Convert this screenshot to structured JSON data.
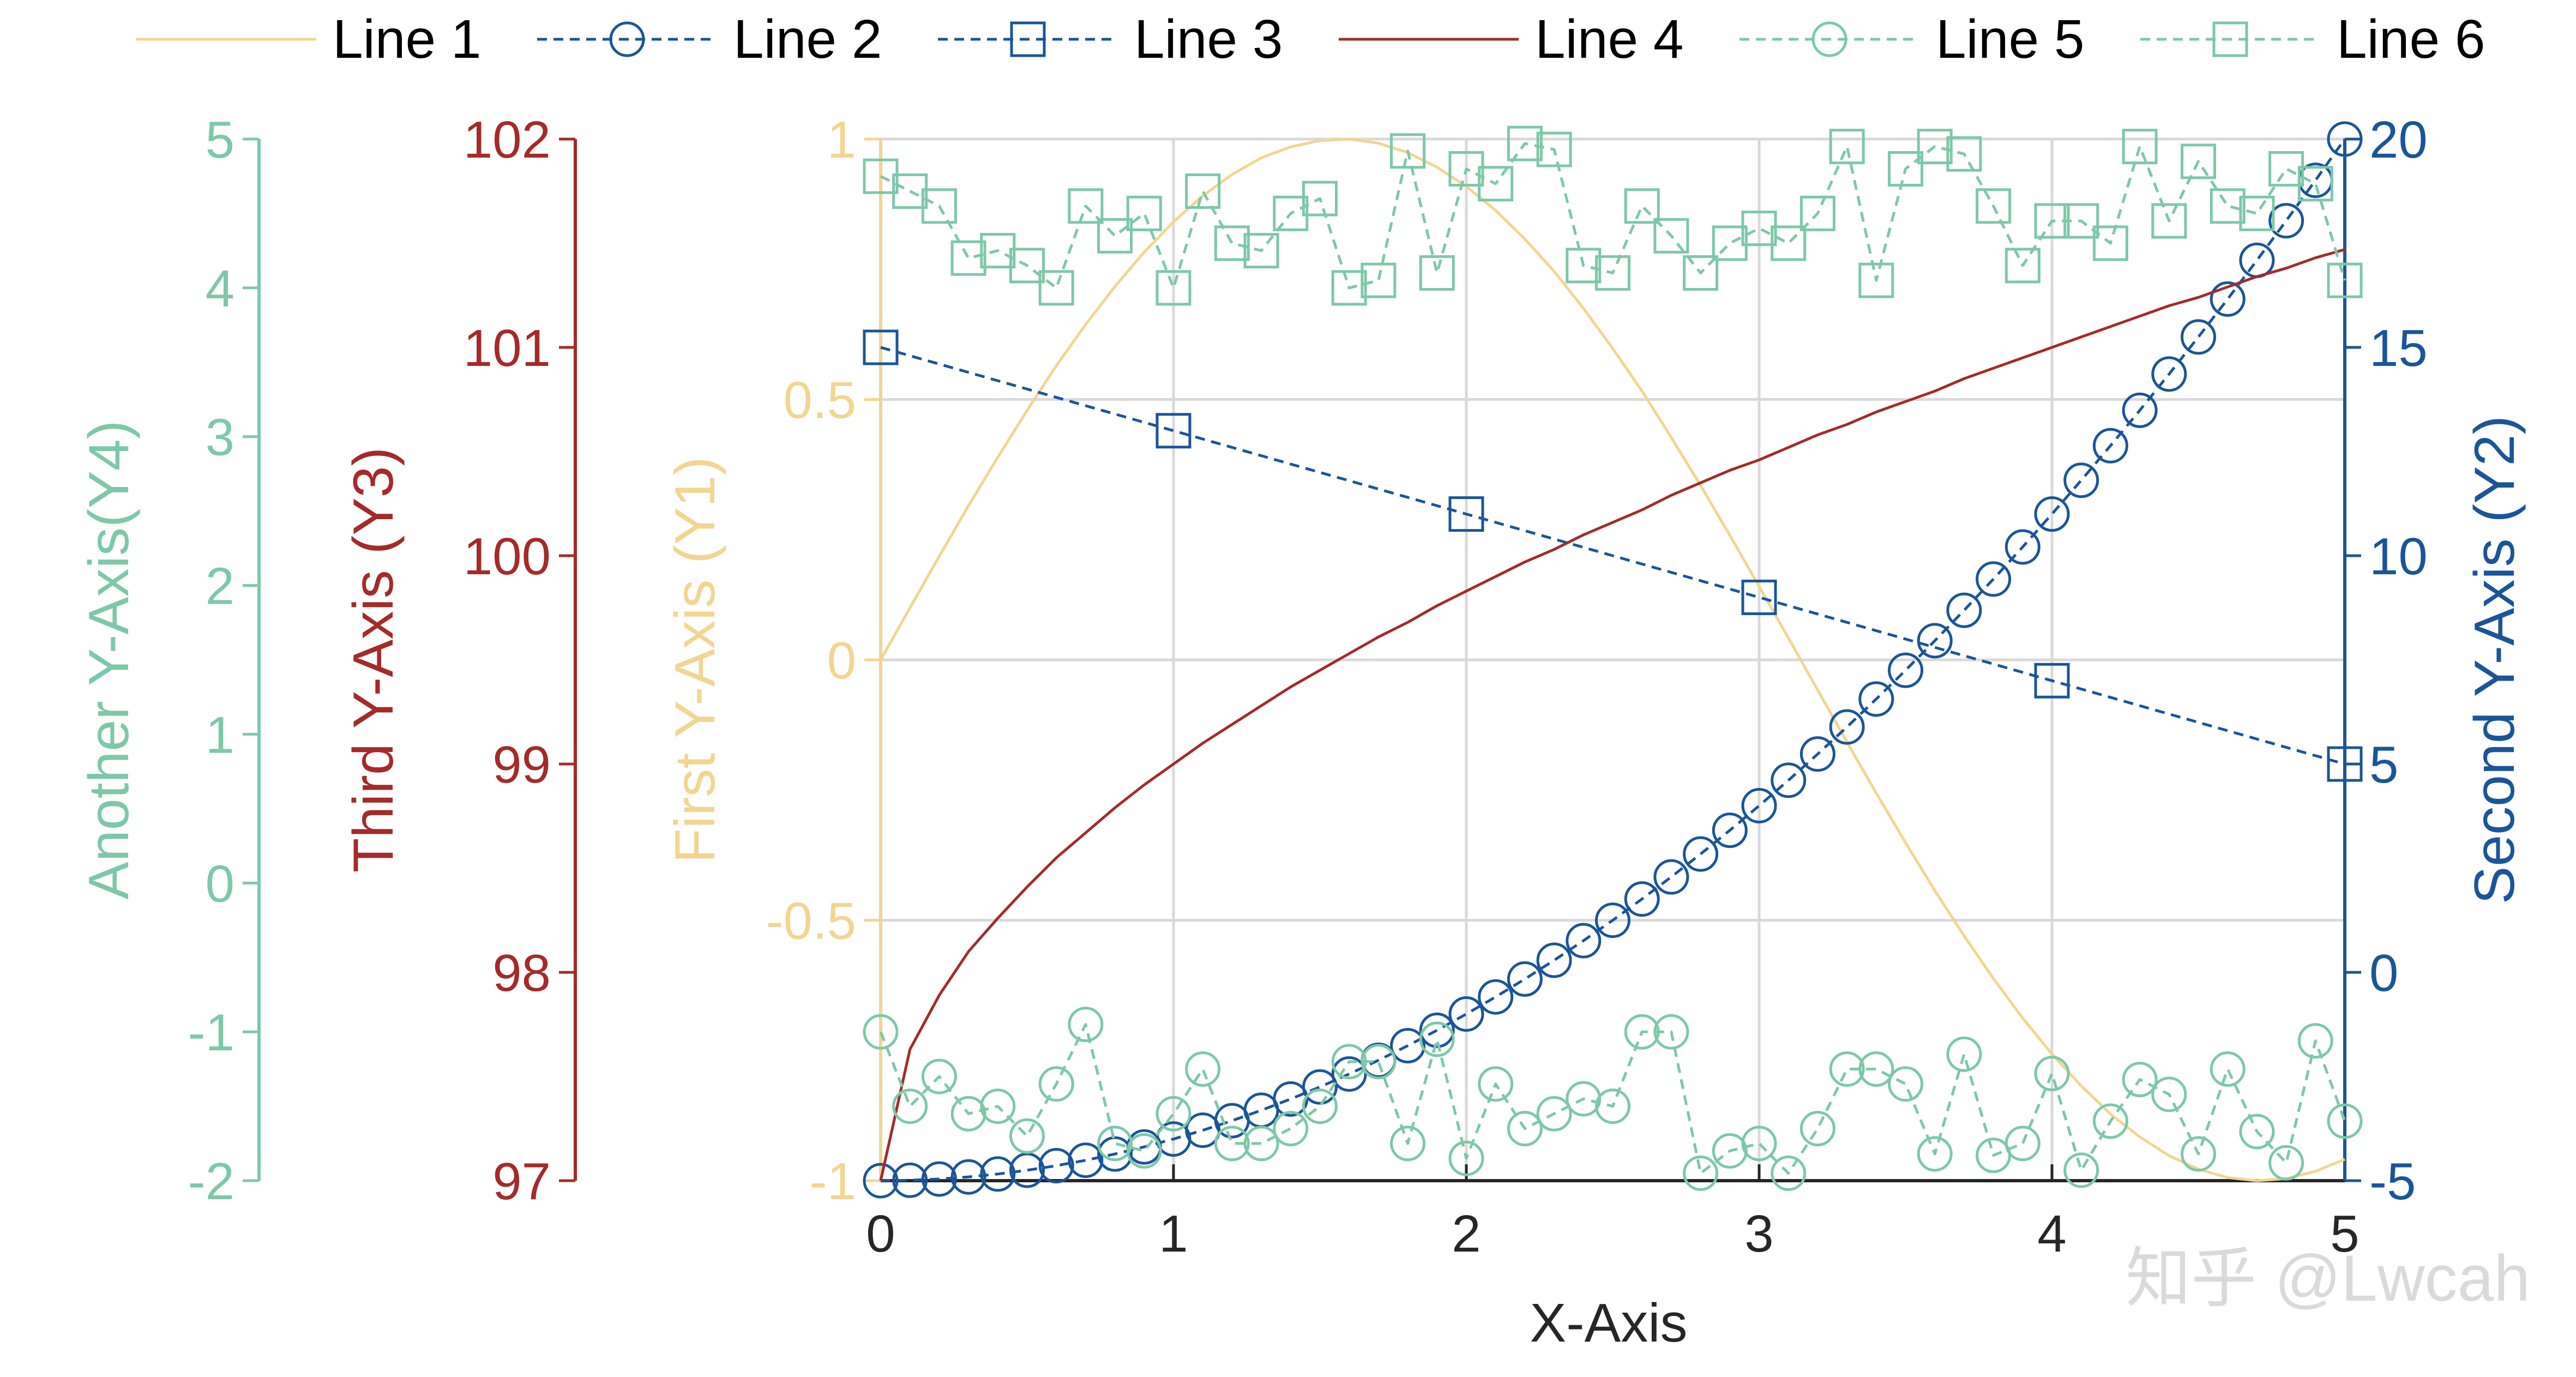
{
  "chart_data": {
    "type": "line",
    "xlabel": "X-Axis",
    "xlim": [
      0,
      5
    ],
    "x_ticks": [
      "0",
      "1",
      "2",
      "3",
      "4",
      "5"
    ],
    "grid": true,
    "legend_position": "top",
    "watermark": "知乎 @Lwcah",
    "axes": {
      "y1": {
        "label": "First Y-Axis (Y1)",
        "lim": [
          -1,
          1
        ],
        "ticks": [
          "1",
          "0.5",
          "0",
          "-0.5",
          "-1"
        ],
        "color": "#F2D590"
      },
      "y2": {
        "label": "Second Y-Axis (Y2)",
        "lim": [
          -5,
          20
        ],
        "ticks": [
          "20",
          "15",
          "10",
          "5",
          "0",
          "-5"
        ],
        "color": "#1A5599"
      },
      "y3": {
        "label": "Third Y-Axis (Y3)",
        "lim": [
          97,
          102
        ],
        "ticks": [
          "102",
          "101",
          "100",
          "99",
          "98",
          "97"
        ],
        "color": "#A52A2A"
      },
      "y4": {
        "label": "Another Y-Axis(Y4)",
        "lim": [
          -2,
          5
        ],
        "ticks": [
          "5",
          "4",
          "3",
          "2",
          "1",
          "0",
          "-1",
          "-2"
        ],
        "color": "#7DC8A8"
      }
    },
    "series": [
      {
        "name": "Line 1",
        "axis": "y1",
        "color": "#F2D590",
        "style": "solid",
        "marker": "none",
        "x": [
          0,
          0.1,
          0.2,
          0.3,
          0.4,
          0.5,
          0.6,
          0.7,
          0.8,
          0.9,
          1,
          1.1,
          1.2,
          1.3,
          1.4,
          1.5,
          1.6,
          1.7,
          1.8,
          1.9,
          2,
          2.1,
          2.2,
          2.3,
          2.4,
          2.5,
          2.6,
          2.7,
          2.8,
          2.9,
          3,
          3.1,
          3.2,
          3.3,
          3.4,
          3.5,
          3.6,
          3.7,
          3.8,
          3.9,
          4,
          4.1,
          4.2,
          4.3,
          4.4,
          4.5,
          4.6,
          4.7,
          4.8,
          4.9,
          5
        ],
        "y": [
          0,
          0.1,
          0.199,
          0.296,
          0.389,
          0.479,
          0.565,
          0.644,
          0.717,
          0.783,
          0.841,
          0.891,
          0.932,
          0.964,
          0.985,
          0.997,
          1.0,
          0.992,
          0.974,
          0.946,
          0.909,
          0.863,
          0.808,
          0.746,
          0.675,
          0.598,
          0.516,
          0.427,
          0.335,
          0.239,
          0.141,
          0.042,
          -0.058,
          -0.158,
          -0.256,
          -0.351,
          -0.443,
          -0.53,
          -0.612,
          -0.688,
          -0.757,
          -0.818,
          -0.872,
          -0.916,
          -0.952,
          -0.978,
          -0.994,
          -1.0,
          -0.996,
          -0.982,
          -0.959
        ]
      },
      {
        "name": "Line 2",
        "axis": "y2",
        "color": "#1A5599",
        "style": "dashed",
        "marker": "circle",
        "x": [
          0,
          0.1,
          0.2,
          0.3,
          0.4,
          0.5,
          0.6,
          0.7,
          0.8,
          0.9,
          1,
          1.1,
          1.2,
          1.3,
          1.4,
          1.5,
          1.6,
          1.7,
          1.8,
          1.9,
          2,
          2.1,
          2.2,
          2.3,
          2.4,
          2.5,
          2.6,
          2.7,
          2.8,
          2.9,
          3,
          3.1,
          3.2,
          3.3,
          3.4,
          3.5,
          3.6,
          3.7,
          3.8,
          3.9,
          4,
          4.1,
          4.2,
          4.3,
          4.4,
          4.5,
          4.6,
          4.7,
          4.8,
          4.9,
          5
        ],
        "y": [
          -5,
          -4.99,
          -4.96,
          -4.91,
          -4.84,
          -4.75,
          -4.64,
          -4.51,
          -4.36,
          -4.19,
          -4,
          -3.79,
          -3.56,
          -3.31,
          -3.04,
          -2.75,
          -2.44,
          -2.11,
          -1.76,
          -1.39,
          -1,
          -0.59,
          -0.16,
          0.29,
          0.76,
          1.25,
          1.76,
          2.29,
          2.84,
          3.41,
          4,
          4.61,
          5.24,
          5.89,
          6.56,
          7.25,
          7.96,
          8.69,
          9.44,
          10.21,
          11,
          11.81,
          12.64,
          13.49,
          14.36,
          15.25,
          16.16,
          17.09,
          18.04,
          19.01,
          20
        ]
      },
      {
        "name": "Line 3",
        "axis": "y2",
        "color": "#1A5599",
        "style": "dashed",
        "marker": "square",
        "x": [
          0,
          1,
          2,
          3,
          4,
          5
        ],
        "y": [
          15,
          13,
          11,
          9,
          7,
          5
        ]
      },
      {
        "name": "Line 4",
        "axis": "y3",
        "color": "#A52A2A",
        "style": "solid",
        "marker": "none",
        "x": [
          0,
          0.1,
          0.2,
          0.3,
          0.4,
          0.5,
          0.6,
          0.7,
          0.8,
          0.9,
          1,
          1.1,
          1.2,
          1.3,
          1.4,
          1.5,
          1.6,
          1.7,
          1.8,
          1.9,
          2,
          2.1,
          2.2,
          2.3,
          2.4,
          2.5,
          2.6,
          2.7,
          2.8,
          2.9,
          3,
          3.1,
          3.2,
          3.3,
          3.4,
          3.5,
          3.6,
          3.7,
          3.8,
          3.9,
          4,
          4.1,
          4.2,
          4.3,
          4.4,
          4.5,
          4.6,
          4.7,
          4.8,
          4.9,
          5
        ],
        "y": [
          97,
          97.63,
          97.89,
          98.1,
          98.26,
          98.41,
          98.55,
          98.67,
          98.79,
          98.9,
          99.0,
          99.1,
          99.19,
          99.28,
          99.37,
          99.45,
          99.53,
          99.61,
          99.68,
          99.76,
          99.83,
          99.9,
          99.97,
          100.03,
          100.1,
          100.16,
          100.22,
          100.29,
          100.35,
          100.41,
          100.46,
          100.52,
          100.58,
          100.63,
          100.69,
          100.74,
          100.79,
          100.85,
          100.9,
          100.95,
          101.0,
          101.05,
          101.1,
          101.15,
          101.2,
          101.24,
          101.29,
          101.34,
          101.38,
          101.43,
          101.47
        ]
      },
      {
        "name": "Line 5",
        "axis": "y4",
        "color": "#7DC8A8",
        "style": "dashed",
        "marker": "circle",
        "x": [
          0,
          0.1,
          0.2,
          0.3,
          0.4,
          0.5,
          0.6,
          0.7,
          0.8,
          0.9,
          1,
          1.1,
          1.2,
          1.3,
          1.4,
          1.5,
          1.6,
          1.7,
          1.8,
          1.9,
          2,
          2.1,
          2.2,
          2.3,
          2.4,
          2.5,
          2.6,
          2.7,
          2.8,
          2.9,
          3,
          3.1,
          3.2,
          3.3,
          3.4,
          3.5,
          3.6,
          3.7,
          3.8,
          3.9,
          4,
          4.1,
          4.2,
          4.3,
          4.4,
          4.5,
          4.6,
          4.7,
          4.8,
          4.9,
          5
        ],
        "y": [
          -1.0,
          -1.5,
          -1.3,
          -1.55,
          -1.5,
          -1.7,
          -1.35,
          -0.95,
          -1.75,
          -1.8,
          -1.55,
          -1.25,
          -1.75,
          -1.75,
          -1.65,
          -1.5,
          -1.2,
          -1.2,
          -1.75,
          -1.05,
          -1.85,
          -1.35,
          -1.65,
          -1.55,
          -1.45,
          -1.5,
          -1.0,
          -1.0,
          -1.95,
          -1.8,
          -1.75,
          -1.95,
          -1.65,
          -1.25,
          -1.25,
          -1.35,
          -1.82,
          -1.15,
          -1.83,
          -1.75,
          -1.28,
          -1.93,
          -1.6,
          -1.32,
          -1.42,
          -1.82,
          -1.25,
          -1.67,
          -1.88,
          -1.06,
          -1.6
        ]
      },
      {
        "name": "Line 6",
        "axis": "y4",
        "color": "#7DC8A8",
        "style": "dashed",
        "marker": "square",
        "x": [
          0,
          0.1,
          0.2,
          0.3,
          0.4,
          0.5,
          0.6,
          0.7,
          0.8,
          0.9,
          1,
          1.1,
          1.2,
          1.3,
          1.4,
          1.5,
          1.6,
          1.7,
          1.8,
          1.9,
          2,
          2.1,
          2.2,
          2.3,
          2.4,
          2.5,
          2.6,
          2.7,
          2.8,
          2.9,
          3,
          3.1,
          3.2,
          3.3,
          3.4,
          3.5,
          3.6,
          3.7,
          3.8,
          3.9,
          4,
          4.1,
          4.2,
          4.3,
          4.4,
          4.5,
          4.6,
          4.7,
          4.8,
          4.9,
          5
        ],
        "y": [
          4.75,
          4.65,
          4.55,
          4.2,
          4.25,
          4.15,
          4.0,
          4.55,
          4.35,
          4.5,
          4.0,
          4.65,
          4.3,
          4.25,
          4.5,
          4.6,
          4.0,
          4.05,
          4.92,
          4.1,
          4.8,
          4.7,
          4.97,
          4.93,
          4.15,
          4.1,
          4.55,
          4.35,
          4.1,
          4.3,
          4.4,
          4.3,
          4.5,
          4.95,
          4.05,
          4.8,
          4.95,
          4.9,
          4.55,
          4.15,
          4.45,
          4.45,
          4.3,
          4.95,
          4.45,
          4.85,
          4.55,
          4.5,
          4.8,
          4.7,
          4.05
        ]
      }
    ]
  }
}
